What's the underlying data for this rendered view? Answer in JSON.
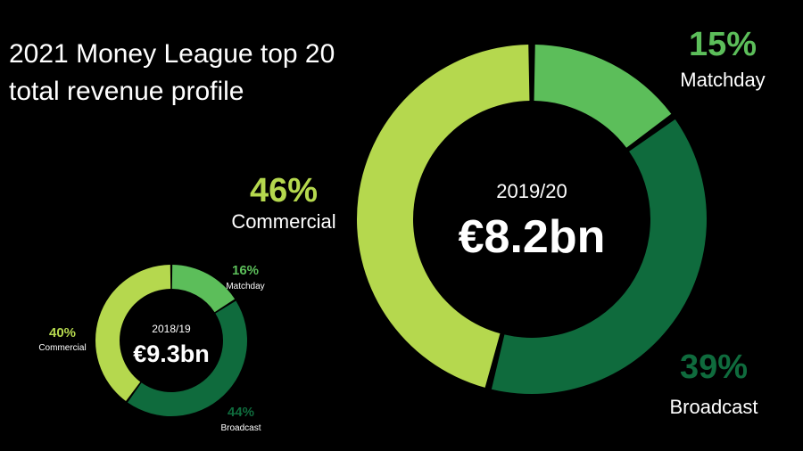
{
  "title_lines": [
    "2021 Money League top 20",
    "total revenue profile"
  ],
  "chart_data": [
    {
      "type": "pie",
      "variant": "donut",
      "season": "2019/20",
      "total": "€8.2bn",
      "categories": [
        "Matchday",
        "Broadcast",
        "Commercial"
      ],
      "values": [
        15,
        39,
        46
      ],
      "labels": [
        "15%",
        "39%",
        "46%"
      ],
      "colors": [
        "#5cbe5a",
        "#0f6b3d",
        "#b5d84e"
      ],
      "label_colors": [
        "#5cbe5a",
        "#0f6b3d",
        "#b5d84e"
      ]
    },
    {
      "type": "pie",
      "variant": "donut",
      "season": "2018/19",
      "total": "€9.3bn",
      "categories": [
        "Matchday",
        "Broadcast",
        "Commercial"
      ],
      "values": [
        16,
        44,
        40
      ],
      "labels": [
        "16%",
        "44%",
        "40%"
      ],
      "colors": [
        "#5cbe5a",
        "#0f6b3d",
        "#b5d84e"
      ],
      "label_colors": [
        "#5cbe5a",
        "#0f6b3d",
        "#b5d84e"
      ]
    }
  ]
}
